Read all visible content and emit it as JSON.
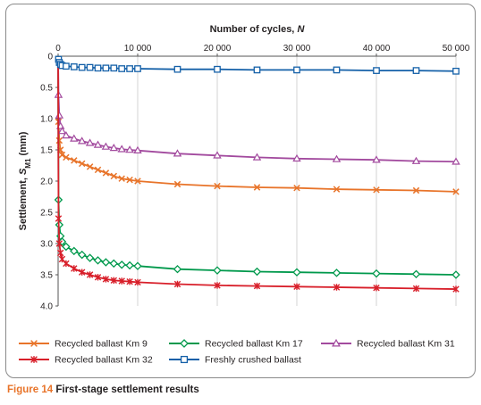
{
  "caption": {
    "figure_label": "Figure 14",
    "text": "First-stage settlement results"
  },
  "chart_data": {
    "type": "line",
    "x_title": "Number of cycles,",
    "x_title_symbol": "N",
    "y_title": "Settlement,",
    "y_title_symbol": "S",
    "y_title_subscript": "M1",
    "y_title_unit": "(mm)",
    "x_axis_position": "top",
    "y_axis_inverted": true,
    "xlim": [
      0,
      50000
    ],
    "ylim": [
      0,
      4.0
    ],
    "x_ticks": [
      0,
      10000,
      20000,
      30000,
      40000,
      50000
    ],
    "x_tick_labels": [
      "0",
      "10 000",
      "20 000",
      "30 000",
      "40 000",
      "50 000"
    ],
    "y_ticks": [
      0,
      0.5,
      1.0,
      1.5,
      2.0,
      2.5,
      3.0,
      3.5,
      4.0
    ],
    "y_tick_labels": [
      "0",
      "0.5",
      "1.0",
      "1.5",
      "2.0",
      "2.5",
      "3.0",
      "3.5",
      "4.0"
    ],
    "grid": "vertical",
    "legend_position": "bottom",
    "series": [
      {
        "name": "Recycled ballast Km 9",
        "color": "#e8742a",
        "marker": "x",
        "x": [
          0,
          50,
          150,
          300,
          500,
          1000,
          2000,
          3000,
          4000,
          5000,
          6000,
          7000,
          8000,
          9000,
          10000,
          15000,
          20000,
          25000,
          30000,
          35000,
          40000,
          45000,
          50000
        ],
        "y": [
          0,
          1.05,
          1.35,
          1.5,
          1.58,
          1.62,
          1.67,
          1.72,
          1.77,
          1.82,
          1.87,
          1.92,
          1.96,
          1.98,
          2.0,
          2.05,
          2.08,
          2.1,
          2.11,
          2.13,
          2.14,
          2.15,
          2.17
        ]
      },
      {
        "name": "Recycled ballast Km 17",
        "color": "#00994c",
        "marker": "diamond",
        "x": [
          0,
          50,
          150,
          300,
          500,
          1000,
          2000,
          3000,
          4000,
          5000,
          6000,
          7000,
          8000,
          9000,
          10000,
          15000,
          20000,
          25000,
          30000,
          35000,
          40000,
          45000,
          50000
        ],
        "y": [
          0,
          2.3,
          2.7,
          2.88,
          2.97,
          3.05,
          3.12,
          3.18,
          3.23,
          3.27,
          3.3,
          3.32,
          3.34,
          3.35,
          3.36,
          3.41,
          3.43,
          3.45,
          3.46,
          3.47,
          3.48,
          3.49,
          3.5
        ]
      },
      {
        "name": "Recycled ballast Km 31",
        "color": "#a24a9e",
        "marker": "triangle",
        "x": [
          0,
          50,
          150,
          300,
          500,
          1000,
          2000,
          3000,
          4000,
          5000,
          6000,
          7000,
          8000,
          9000,
          10000,
          15000,
          20000,
          25000,
          30000,
          35000,
          40000,
          45000,
          50000
        ],
        "y": [
          0,
          0.62,
          0.95,
          1.12,
          1.2,
          1.27,
          1.32,
          1.36,
          1.39,
          1.42,
          1.45,
          1.47,
          1.49,
          1.5,
          1.51,
          1.56,
          1.59,
          1.62,
          1.64,
          1.65,
          1.66,
          1.68,
          1.69
        ]
      },
      {
        "name": "Recycled ballast Km 32",
        "color": "#d81f2a",
        "marker": "star",
        "x": [
          0,
          50,
          150,
          300,
          500,
          1000,
          2000,
          3000,
          4000,
          5000,
          6000,
          7000,
          8000,
          9000,
          10000,
          15000,
          20000,
          25000,
          30000,
          35000,
          40000,
          45000,
          50000
        ],
        "y": [
          0,
          2.6,
          3.0,
          3.15,
          3.25,
          3.32,
          3.4,
          3.46,
          3.5,
          3.54,
          3.57,
          3.59,
          3.6,
          3.61,
          3.62,
          3.65,
          3.67,
          3.68,
          3.69,
          3.7,
          3.71,
          3.72,
          3.73
        ]
      },
      {
        "name": "Freshly crushed ballast",
        "color": "#1460a8",
        "marker": "square",
        "x": [
          0,
          50,
          150,
          300,
          500,
          1000,
          2000,
          3000,
          4000,
          5000,
          6000,
          7000,
          8000,
          9000,
          10000,
          15000,
          20000,
          25000,
          30000,
          35000,
          40000,
          45000,
          50000
        ],
        "y": [
          0,
          0.05,
          0.1,
          0.13,
          0.15,
          0.16,
          0.17,
          0.18,
          0.18,
          0.19,
          0.19,
          0.19,
          0.2,
          0.2,
          0.2,
          0.21,
          0.21,
          0.22,
          0.22,
          0.22,
          0.23,
          0.23,
          0.24
        ]
      }
    ]
  }
}
